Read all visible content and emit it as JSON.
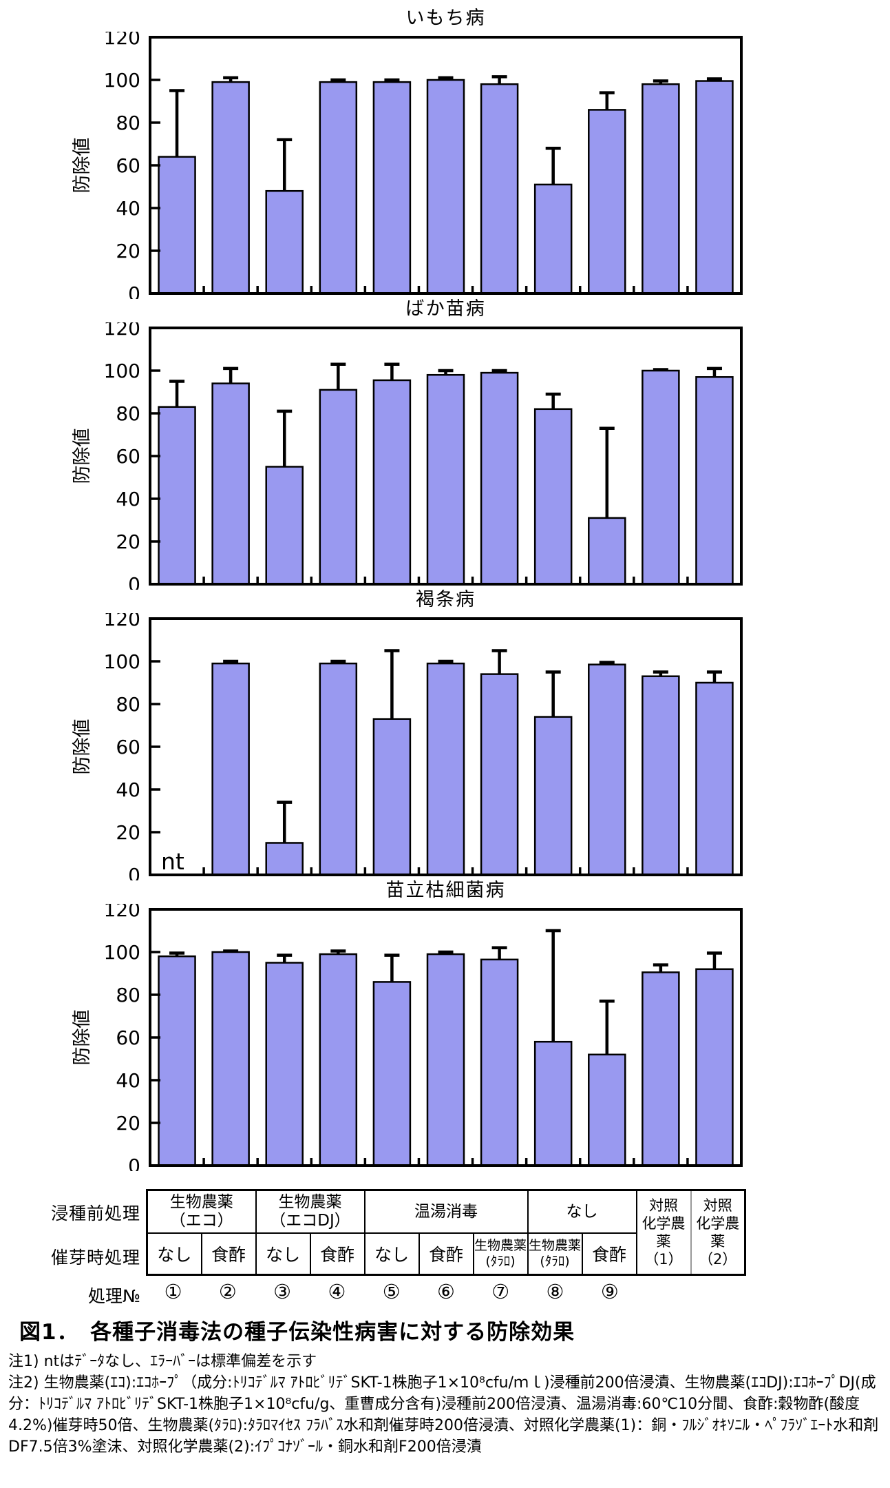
{
  "colors": {
    "bar_fill": "#9999F0",
    "bar_border": "#000000",
    "axis": "#000000",
    "error_bar": "#000000",
    "background": "#FFFFFF",
    "control_divider": "#999999"
  },
  "chart_data": [
    {
      "type": "bar",
      "title": "いもち病",
      "ylabel": "防除値",
      "ylim": [
        0,
        120
      ],
      "yticks": [
        0,
        20,
        40,
        60,
        80,
        100,
        120
      ],
      "grid": false,
      "legend": "none",
      "categories": [
        "①",
        "②",
        "③",
        "④",
        "⑤",
        "⑥",
        "⑦",
        "⑧",
        "⑨",
        "対照化学農薬(1)",
        "対照化学農薬(2)"
      ],
      "values": [
        64,
        99,
        48,
        99,
        99,
        100,
        98,
        51,
        86,
        98,
        99.5
      ],
      "errors_sd_upper": [
        31,
        2,
        24,
        1,
        1,
        1,
        3.5,
        17,
        8,
        1.5,
        1
      ]
    },
    {
      "type": "bar",
      "title": "ばか苗病",
      "ylabel": "防除値",
      "ylim": [
        0,
        120
      ],
      "yticks": [
        0,
        20,
        40,
        60,
        80,
        100,
        120
      ],
      "grid": false,
      "legend": "none",
      "categories": [
        "①",
        "②",
        "③",
        "④",
        "⑤",
        "⑥",
        "⑦",
        "⑧",
        "⑨",
        "対照化学農薬(1)",
        "対照化学農薬(2)"
      ],
      "values": [
        83,
        94,
        55,
        91,
        95.5,
        98,
        99,
        82,
        31,
        100,
        97
      ],
      "errors_sd_upper": [
        12,
        7,
        26,
        12,
        7.5,
        2,
        1,
        7,
        42,
        0.5,
        4
      ]
    },
    {
      "type": "bar",
      "title": "褐条病",
      "ylabel": "防除値",
      "ylim": [
        0,
        120
      ],
      "yticks": [
        0,
        20,
        40,
        60,
        80,
        100,
        120
      ],
      "grid": false,
      "legend": "none",
      "categories": [
        "①",
        "②",
        "③",
        "④",
        "⑤",
        "⑥",
        "⑦",
        "⑧",
        "⑨",
        "対照化学農薬(1)",
        "対照化学農薬(2)"
      ],
      "values": [
        null,
        99,
        15,
        99,
        73,
        99,
        94,
        74,
        98.5,
        93,
        90
      ],
      "errors_sd_upper": [
        null,
        1,
        19,
        1,
        32,
        1,
        11,
        21,
        1,
        2,
        5
      ],
      "no_data_text": "nt"
    },
    {
      "type": "bar",
      "title": "苗立枯細菌病",
      "ylabel": "防除値",
      "ylim": [
        0,
        120
      ],
      "yticks": [
        0,
        20,
        40,
        60,
        80,
        100,
        120
      ],
      "grid": false,
      "legend": "none",
      "categories": [
        "①",
        "②",
        "③",
        "④",
        "⑤",
        "⑥",
        "⑦",
        "⑧",
        "⑨",
        "対照化学農薬(1)",
        "対照化学農薬(2)"
      ],
      "values": [
        98,
        100,
        95,
        99,
        86,
        99,
        96.5,
        58,
        52,
        90.5,
        92
      ],
      "errors_sd_upper": [
        1.5,
        0.5,
        3.5,
        1.5,
        12.5,
        1,
        5.5,
        52,
        25,
        3.5,
        7.5
      ]
    }
  ],
  "table": {
    "row_labels": {
      "pre_soak": "浸種前処理",
      "germination": "催芽時処理",
      "number": "処理№"
    },
    "pre_soak_groups": [
      {
        "label": "生物農薬\n（エコ）",
        "span": 2
      },
      {
        "label": "生物農薬\n（エコDJ）",
        "span": 2
      },
      {
        "label": "温湯消毒",
        "span": 3
      },
      {
        "label": "なし",
        "span": 2
      }
    ],
    "control_columns": [
      {
        "label": "対照\n化学農薬\n（1）"
      },
      {
        "label": "対照\n化学農薬\n（2）"
      }
    ],
    "germination_cells": [
      {
        "label": "なし"
      },
      {
        "label": "食酢"
      },
      {
        "label": "なし"
      },
      {
        "label": "食酢"
      },
      {
        "label": "なし"
      },
      {
        "label": "食酢"
      },
      {
        "label": "生物農薬\n(ﾀﾗﾛ)"
      },
      {
        "label": "生物農薬\n(ﾀﾗﾛ)"
      },
      {
        "label": "食酢"
      }
    ],
    "treatment_numbers": [
      "①",
      "②",
      "③",
      "④",
      "⑤",
      "⑥",
      "⑦",
      "⑧",
      "⑨"
    ]
  },
  "caption": "図1．　各種子消毒法の種子伝染性病害に対する防除効果",
  "notes": {
    "note1": "注1) ntはﾃﾞｰﾀなし、ｴﾗｰﾊﾞｰは標準偏差を示す",
    "note2": "注2) 生物農薬(ｴｺ):ｴｺﾎｰﾌﾟ（成分:ﾄﾘｺﾃﾞﾙﾏ ｱﾄﾛﾋﾞﾘﾃﾞSKT-1株胞子1×10⁸cfu/ｍｌ)浸種前200倍浸漬、生物農薬(ｴｺDJ):ｴｺﾎｰﾌﾟDJ(成分：ﾄﾘｺﾃﾞﾙﾏ ｱﾄﾛﾋﾞﾘﾃﾞSKT-1株胞子1×10⁸cfu/g、重曹成分含有)浸種前200倍浸漬、温湯消毒:60℃10分間、食酢:穀物酢(酸度4.2%)催芽時50倍、生物農薬(ﾀﾗﾛ):ﾀﾗﾛﾏｲｾｽ ﾌﾗﾊﾞｽ水和剤催芽時200倍浸漬、対照化学農薬(1)：銅・ﾌﾙｼﾞｵｷｿﾆﾙ・ﾍﾟﾌﾗｿﾞｴｰﾄ水和剤DF7.5倍3%塗沫、対照化学農薬(2):ｲﾌﾟｺﾅｿﾞｰﾙ・銅水和剤F200倍浸漬"
  }
}
